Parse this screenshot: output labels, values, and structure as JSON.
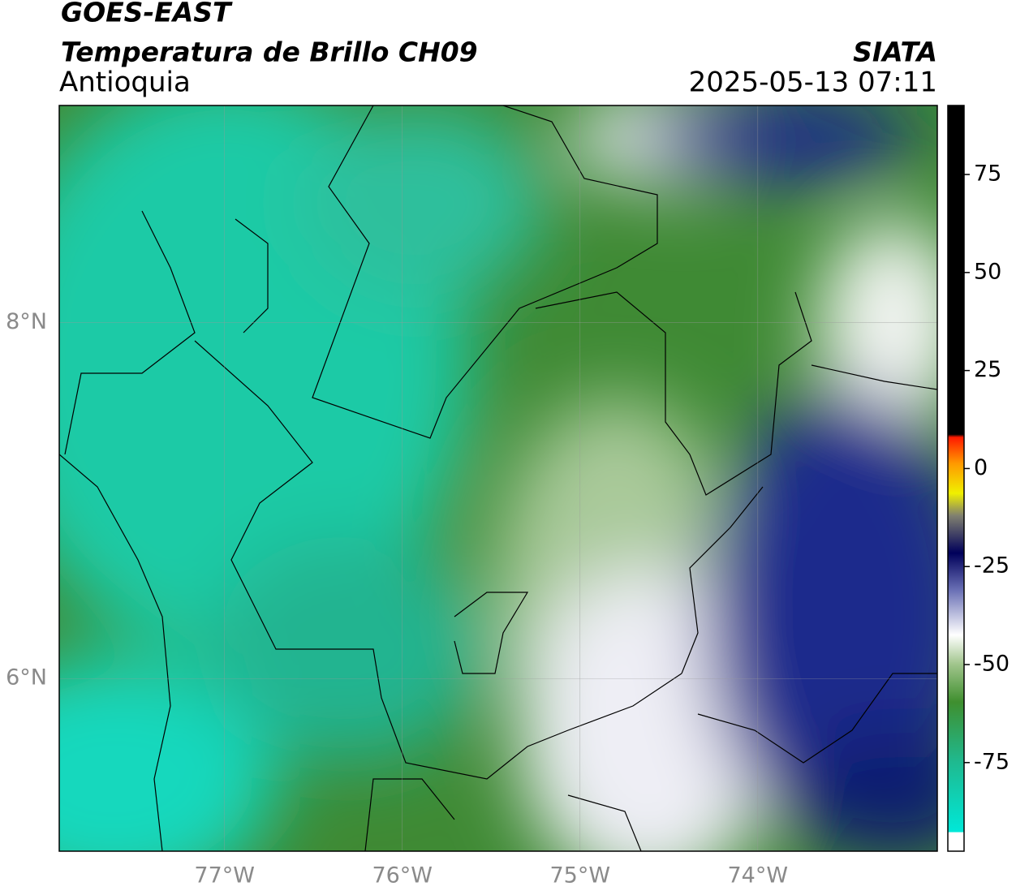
{
  "header": {
    "title": "GOES-EAST",
    "subtitle": "Temperatura de Brillo CH09",
    "region": "Antioquia",
    "source": "SIATA",
    "datetime": "2025-05-13 07:11"
  },
  "map": {
    "xlim": [
      -77.93,
      -72.99
    ],
    "ylim": [
      5.03,
      9.22
    ],
    "xticks": [
      {
        "value": -77,
        "label": "77°W"
      },
      {
        "value": -76,
        "label": "76°W"
      },
      {
        "value": -75,
        "label": "75°W"
      },
      {
        "value": -74,
        "label": "74°W"
      }
    ],
    "yticks": [
      {
        "value": 8,
        "label": "8°N"
      },
      {
        "value": 6,
        "label": "6°N"
      }
    ],
    "grid": true
  },
  "colorbar": {
    "lim": [
      -97.6,
      92.6
    ],
    "ticks": [
      75,
      50,
      25,
      0,
      -25,
      -50,
      -75
    ]
  }
}
